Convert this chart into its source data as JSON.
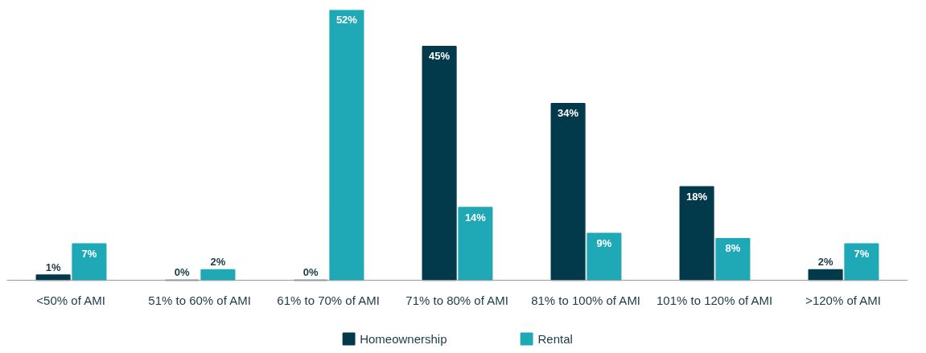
{
  "chart_data": {
    "type": "bar",
    "categories": [
      "<50% of AMI",
      "51% to 60% of AMI",
      "61% to 70% of AMI",
      "71% to 80% of AMI",
      "81% to 100% of AMI",
      "101% to 120% of AMI",
      ">120% of AMI"
    ],
    "series": [
      {
        "name": "Homeownership",
        "color": "#023a4b",
        "values": [
          1,
          0,
          0,
          45,
          34,
          18,
          2
        ],
        "value_labels": [
          "1%",
          "0%",
          "0%",
          "45%",
          "34%",
          "18%",
          "2%"
        ]
      },
      {
        "name": "Rental",
        "color": "#1fa8b5",
        "values": [
          7,
          2,
          52,
          14,
          9,
          8,
          7
        ],
        "value_labels": [
          "7%",
          "2%",
          "52%",
          "14%",
          "9%",
          "8%",
          "7%"
        ]
      }
    ],
    "grid": false,
    "legend": "bottom"
  }
}
